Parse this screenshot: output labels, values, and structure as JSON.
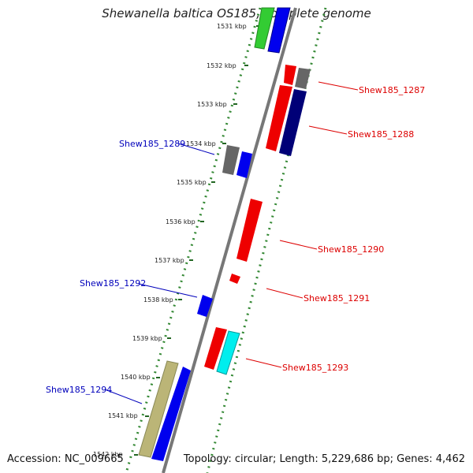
{
  "title": "Shewanella baltica OS185, complete genome",
  "accession_label": "Accession: NC_009665",
  "topology_label": "Topology: circular; Length: 5,229,686 bp; Genes: 4,462",
  "ticks": [
    {
      "label": "1531 kbp"
    },
    {
      "label": "1532 kbp"
    },
    {
      "label": "1533 kbp"
    },
    {
      "label": "1534 kbp"
    },
    {
      "label": "1535 kbp"
    },
    {
      "label": "1536 kbp"
    },
    {
      "label": "1537 kbp"
    },
    {
      "label": "1538 kbp"
    },
    {
      "label": "1539 kbp"
    },
    {
      "label": "1540 kbp"
    },
    {
      "label": "1541 kbp"
    },
    {
      "label": "1542 kbp"
    }
  ],
  "gene_labels": [
    {
      "text": "Shew185_1287",
      "color": "#dd0000"
    },
    {
      "text": "Shew185_1288",
      "color": "#dd0000"
    },
    {
      "text": "Shew185_1289",
      "color": "#0000bb"
    },
    {
      "text": "Shew185_1290",
      "color": "#dd0000"
    },
    {
      "text": "Shew185_1291",
      "color": "#dd0000"
    },
    {
      "text": "Shew185_1292",
      "color": "#0000bb"
    },
    {
      "text": "Shew185_1293",
      "color": "#dd0000"
    },
    {
      "text": "Shew185_1294",
      "color": "#0000bb"
    }
  ],
  "colors": {
    "red": "#ee0000",
    "blue": "#0000ee",
    "gray": "#666666",
    "navy": "#000077",
    "cyan": "#00eeee",
    "olive": "#bbb577",
    "green": "#33cc33",
    "backbone": "#777777",
    "dotted": "#338833"
  }
}
